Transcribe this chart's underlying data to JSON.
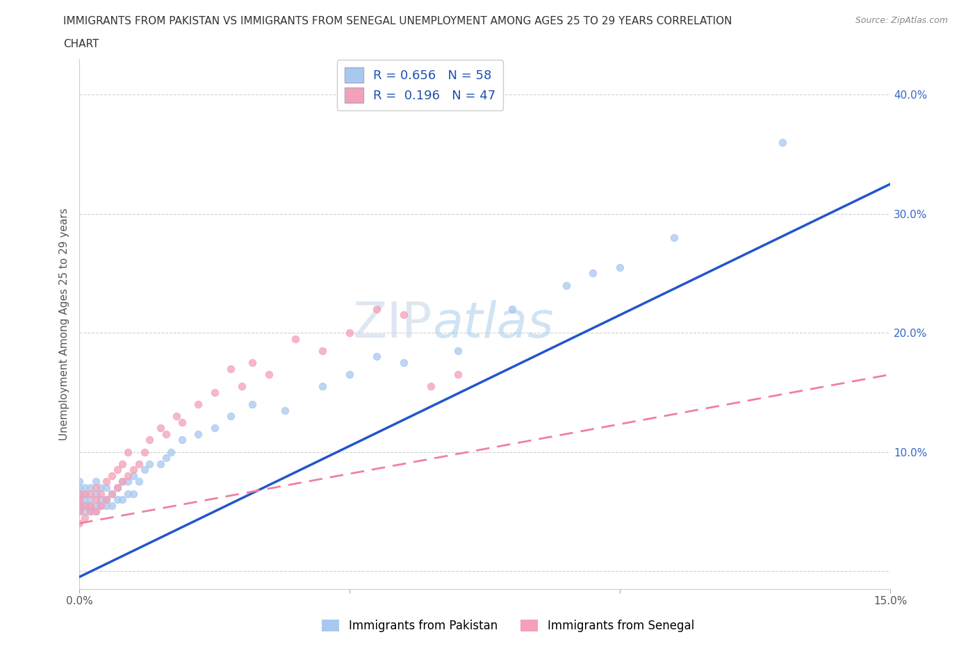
{
  "title_line1": "IMMIGRANTS FROM PAKISTAN VS IMMIGRANTS FROM SENEGAL UNEMPLOYMENT AMONG AGES 25 TO 29 YEARS CORRELATION",
  "title_line2": "CHART",
  "source_text": "Source: ZipAtlas.com",
  "ylabel": "Unemployment Among Ages 25 to 29 years",
  "xlim": [
    0.0,
    0.15
  ],
  "ylim": [
    -0.015,
    0.43
  ],
  "pakistan_color": "#a8c8f0",
  "senegal_color": "#f4a0b8",
  "pakistan_line_color": "#2255cc",
  "senegal_line_color": "#f080a0",
  "R_pakistan": 0.656,
  "N_pakistan": 58,
  "R_senegal": 0.196,
  "N_senegal": 47,
  "legend_label_pakistan": "Immigrants from Pakistan",
  "legend_label_senegal": "Immigrants from Senegal",
  "watermark_zip": "ZIP",
  "watermark_atlas": "atlas",
  "background_color": "#ffffff",
  "grid_color": "#cccccc",
  "yaxis_label_color": "#3366cc",
  "pakistan_trend_x": [
    0.0,
    0.15
  ],
  "pakistan_trend_y": [
    -0.005,
    0.325
  ],
  "senegal_trend_x": [
    0.0,
    0.15
  ],
  "senegal_trend_y": [
    0.04,
    0.165
  ],
  "pak_x": [
    0.0,
    0.0,
    0.0,
    0.0,
    0.0,
    0.0,
    0.001,
    0.001,
    0.001,
    0.001,
    0.001,
    0.002,
    0.002,
    0.002,
    0.002,
    0.003,
    0.003,
    0.003,
    0.003,
    0.004,
    0.004,
    0.004,
    0.005,
    0.005,
    0.005,
    0.006,
    0.006,
    0.007,
    0.007,
    0.008,
    0.008,
    0.009,
    0.009,
    0.01,
    0.01,
    0.011,
    0.012,
    0.013,
    0.015,
    0.016,
    0.017,
    0.019,
    0.022,
    0.025,
    0.028,
    0.032,
    0.038,
    0.045,
    0.05,
    0.055,
    0.06,
    0.07,
    0.08,
    0.09,
    0.095,
    0.1,
    0.11,
    0.13
  ],
  "pak_y": [
    0.05,
    0.055,
    0.06,
    0.065,
    0.07,
    0.075,
    0.05,
    0.055,
    0.06,
    0.065,
    0.07,
    0.05,
    0.055,
    0.06,
    0.07,
    0.05,
    0.055,
    0.065,
    0.075,
    0.055,
    0.06,
    0.07,
    0.055,
    0.06,
    0.07,
    0.055,
    0.065,
    0.06,
    0.07,
    0.06,
    0.075,
    0.065,
    0.075,
    0.065,
    0.08,
    0.075,
    0.085,
    0.09,
    0.09,
    0.095,
    0.1,
    0.11,
    0.115,
    0.12,
    0.13,
    0.14,
    0.135,
    0.155,
    0.165,
    0.18,
    0.175,
    0.185,
    0.22,
    0.24,
    0.25,
    0.255,
    0.28,
    0.36
  ],
  "sen_x": [
    0.0,
    0.0,
    0.0,
    0.0,
    0.0,
    0.001,
    0.001,
    0.001,
    0.002,
    0.002,
    0.002,
    0.003,
    0.003,
    0.003,
    0.004,
    0.004,
    0.005,
    0.005,
    0.006,
    0.006,
    0.007,
    0.007,
    0.008,
    0.008,
    0.009,
    0.009,
    0.01,
    0.011,
    0.012,
    0.013,
    0.015,
    0.016,
    0.018,
    0.019,
    0.022,
    0.025,
    0.028,
    0.03,
    0.032,
    0.035,
    0.04,
    0.045,
    0.05,
    0.055,
    0.06,
    0.065,
    0.07
  ],
  "sen_y": [
    0.04,
    0.05,
    0.055,
    0.06,
    0.065,
    0.045,
    0.055,
    0.065,
    0.05,
    0.055,
    0.065,
    0.05,
    0.06,
    0.07,
    0.055,
    0.065,
    0.06,
    0.075,
    0.065,
    0.08,
    0.07,
    0.085,
    0.075,
    0.09,
    0.08,
    0.1,
    0.085,
    0.09,
    0.1,
    0.11,
    0.12,
    0.115,
    0.13,
    0.125,
    0.14,
    0.15,
    0.17,
    0.155,
    0.175,
    0.165,
    0.195,
    0.185,
    0.2,
    0.22,
    0.215,
    0.155,
    0.165
  ]
}
